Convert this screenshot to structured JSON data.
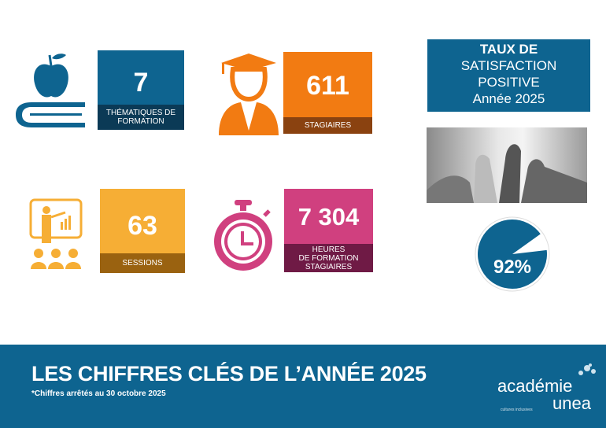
{
  "stats": [
    {
      "value": "7",
      "label": "THÉMATIQUES DE\nFORMATION",
      "icon": "book-apple-icon",
      "color": "#0e6490",
      "band": "#0b3a56"
    },
    {
      "value": "611",
      "label": "STAGIAIRES",
      "icon": "graduate-icon",
      "color": "#f27b12",
      "band": "#8a4210"
    },
    {
      "value": "63",
      "label": "SESSIONS",
      "icon": "presentation-icon",
      "color": "#f6ae35",
      "band": "#9a6210"
    },
    {
      "value": "7 304",
      "label": "HEURES\nDE FORMATION\nSTAGIAIRES",
      "icon": "stopwatch-icon",
      "color": "#d0407f",
      "band": "#6f1a45"
    }
  ],
  "satisfaction": {
    "title_bold": "TAUX DE",
    "line2": "SATISFACTION",
    "line3": "POSITIVE",
    "line4": "Année 2025",
    "photo": "thumbs-up-photo",
    "value": "92%",
    "fraction": 0.92,
    "color": "#0e6490"
  },
  "footer": {
    "title": "LES CHIFFRES CLÉS DE L’ANNÉE 2025",
    "note": "*Chiffres arrêtés au 30 octobre 2025",
    "logo_top": "académie",
    "logo_bottom": "unea",
    "logo_tagline": "cultures inclusives"
  }
}
